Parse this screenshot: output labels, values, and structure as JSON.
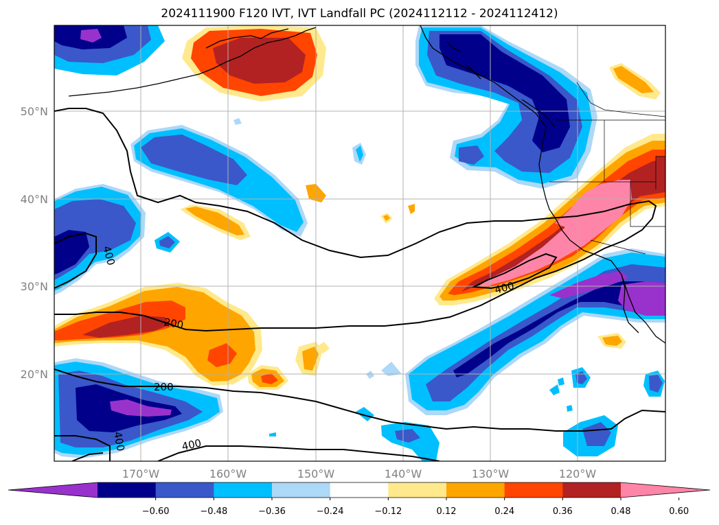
{
  "title": "2024111900 F120 IVT, IVT Landfall PC (2024112112 - 2024112412)",
  "map": {
    "lon_range": [
      -180,
      -110
    ],
    "lat_range": [
      10,
      60
    ],
    "gridlines": true,
    "lat_labels": [
      "50°N",
      "40°N",
      "30°N",
      "20°N"
    ],
    "lon_labels": [
      "170°W",
      "160°W",
      "150°W",
      "140°W",
      "130°W",
      "120°W"
    ],
    "contour_labels": [
      "400",
      "400",
      "200",
      "200",
      "400",
      "400"
    ],
    "contour_values": [
      200,
      400
    ],
    "colors": {
      "v_lt_-0.60": "#9932cc",
      "v_-0.60_-0.48": "#00008b",
      "v_-0.48_-0.36": "#3a58c9",
      "v_-0.36_-0.24": "#00bfff",
      "v_-0.24_-0.12": "#add8f7",
      "v_-0.12_0.12": "#ffffff",
      "v_0.12_0.24": "#ffe98c",
      "v_0.24_0.36": "#ffa500",
      "v_0.36_0.48": "#ff4500",
      "v_0.48_0.60": "#b22222",
      "v_gt_0.60": "#ff85a8"
    }
  },
  "colorbar": {
    "labels": [
      "−0.60",
      "−0.48",
      "−0.36",
      "−0.24",
      "−0.12",
      "0.12",
      "0.24",
      "0.36",
      "0.48",
      "0.60"
    ],
    "colors": [
      "#9932cc",
      "#00008b",
      "#3a58c9",
      "#00bfff",
      "#add8f7",
      "#ffffff",
      "#ffe98c",
      "#ffa500",
      "#ff4500",
      "#b22222",
      "#ff85a8"
    ],
    "extend": "both"
  }
}
